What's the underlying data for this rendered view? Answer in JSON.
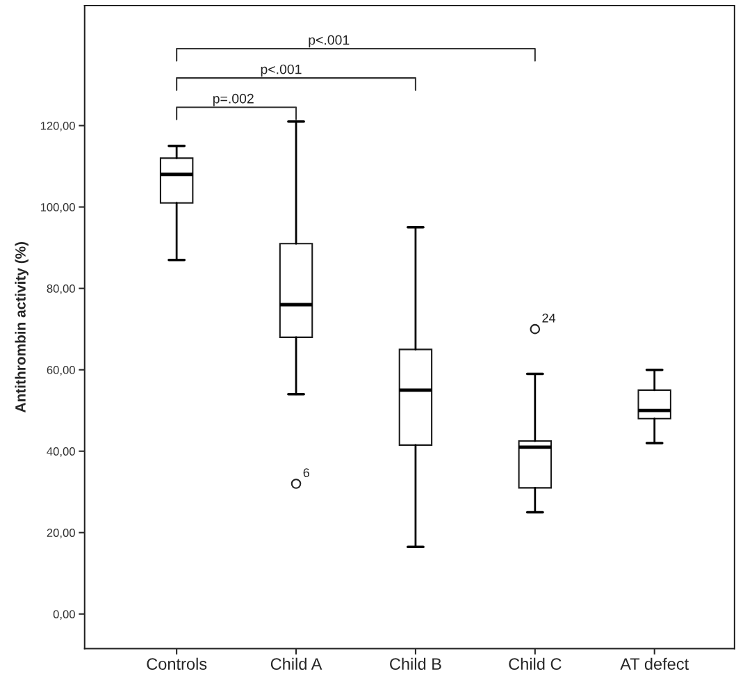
{
  "chart_data": {
    "type": "box",
    "ylabel": "Antithrombin activity (%)",
    "categories": [
      "Controls",
      "Child A",
      "Child B",
      "Child C",
      "AT defect"
    ],
    "boxes": [
      {
        "low": 87,
        "q1": 101,
        "median": 108,
        "q3": 112,
        "high": 115
      },
      {
        "low": 54,
        "q1": 68,
        "median": 76,
        "q3": 91,
        "high": 121,
        "outliers": [
          32
        ]
      },
      {
        "low": 16.5,
        "q1": 41.5,
        "median": 55,
        "q3": 65,
        "high": 95
      },
      {
        "low": 25,
        "q1": 31,
        "median": 41,
        "q3": 42.5,
        "high": 59,
        "outliers": [
          70
        ]
      },
      {
        "low": 42,
        "q1": 48,
        "median": 50,
        "q3": 55,
        "high": 60
      }
    ],
    "color": "#ffffff",
    "ylim": [
      -8.5,
      149.5
    ],
    "yticks": [
      {
        "value": 0,
        "label": "0,00"
      },
      {
        "value": 20,
        "label": "20,00"
      },
      {
        "value": 40,
        "label": "40,00"
      },
      {
        "value": 60,
        "label": "60,00"
      },
      {
        "value": 80,
        "label": "80,00"
      },
      {
        "value": 100,
        "label": "100,00"
      },
      {
        "value": 120,
        "label": "120,00"
      }
    ],
    "grid": false,
    "annotations": [
      "p=.002",
      "p<.001",
      "p<.001",
      "6",
      "24"
    ]
  }
}
